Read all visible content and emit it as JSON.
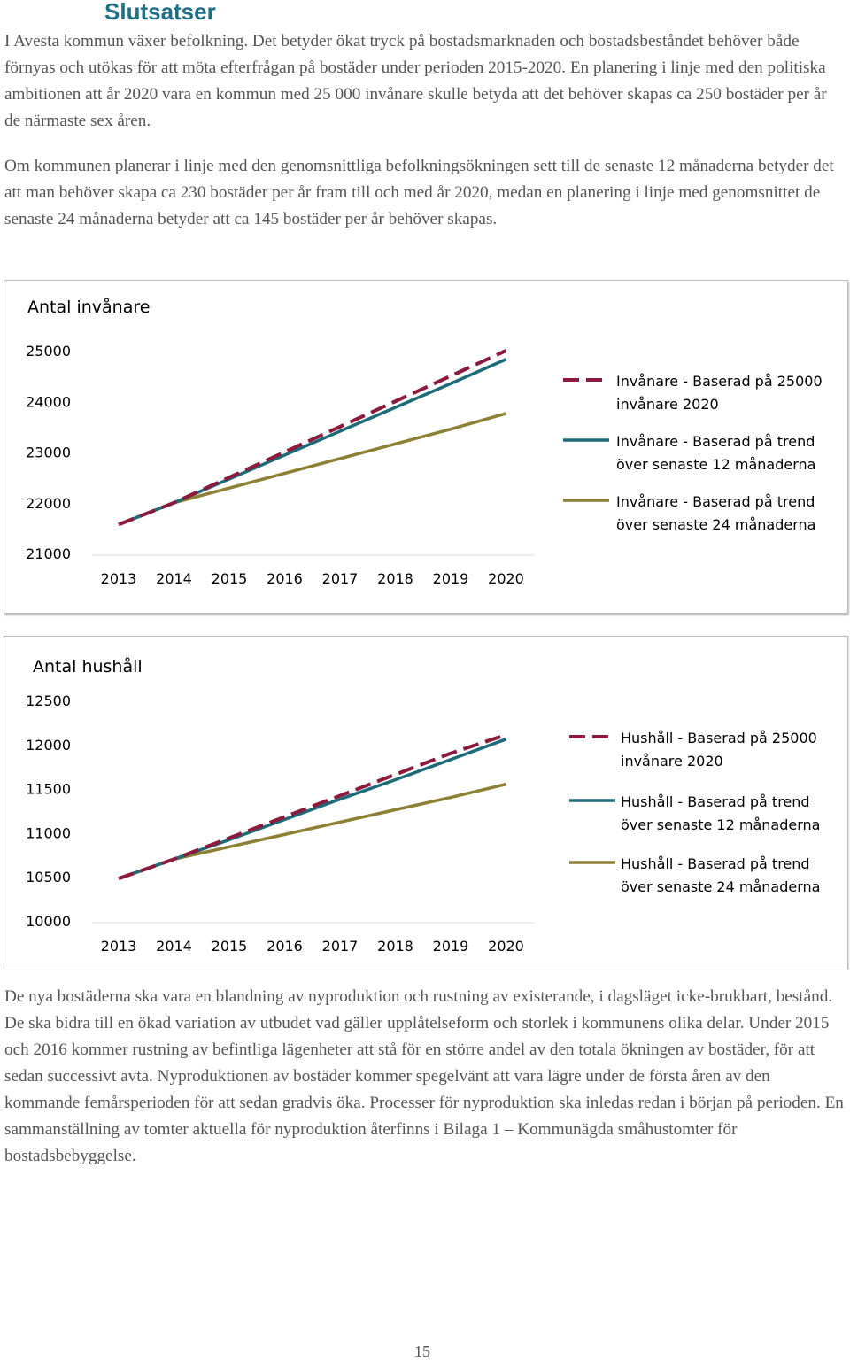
{
  "heading": "Slutsatser",
  "paragraphs": [
    "I Avesta kommun växer befolkning. Det betyder ökat tryck på bostadsmarknaden och bostadsbeståndet behöver både förnyas och utökas för att möta efterfrågan på bostäder under perioden 2015-2020. En planering i linje med den politiska ambitionen att år 2020 vara en kommun med 25 000 invånare skulle betyda att det behöver skapas ca 250 bostäder per år de närmaste sex åren.",
    "Om kommunen planerar i linje med den genomsnittliga befolkningsökningen sett till de senaste 12 månaderna betyder det att man behöver skapa ca 230 bostäder per år fram till och med år 2020, medan en planering i linje med genomsnittet de senaste 24 månaderna betyder att ca 145 bostäder per år behöver skapas.",
    "De nya bostäderna ska vara en blandning av nyproduktion och rustning av existerande, i dagsläget icke-brukbart, bestånd. De ska bidra till en ökad variation av utbudet vad gäller upplåtelseform och storlek i kommunens olika delar. Under 2015 och 2016 kommer rustning av befintliga lägenheter att stå för en större andel av den totala ökningen av bostäder, för att sedan successivt avta. Nyproduktionen av bostäder kommer spegelvänt att vara lägre under de första åren av den kommande femårsperioden för att sedan gradvis öka. Processer för nyproduktion ska inledas redan i början på perioden. En sammanställning av tomter aktuella för nyproduktion återfinns i Bilaga 1 – Kommunägda småhustomter för bostadsbebyggelse."
  ],
  "page_number": "15",
  "chart_data": [
    {
      "type": "line",
      "title": "Antal invånare",
      "xlabel": "",
      "ylabel": "",
      "categories": [
        "2013",
        "2014",
        "2015",
        "2016",
        "2017",
        "2018",
        "2019",
        "2020"
      ],
      "ylim": [
        21000,
        25000
      ],
      "yticks": [
        "21000",
        "22000",
        "23000",
        "24000",
        "25000"
      ],
      "grid": false,
      "legend_position": "right",
      "series": [
        {
          "name": "Invånare - Baserad på 25000 invånare 2020",
          "legend_lines": [
            "Invånare - Baserad på 25000",
            "invånare 2020"
          ],
          "color": "#8b1a3c",
          "style": "dashed",
          "values": [
            21570,
            22000,
            22500,
            23000,
            23500,
            24000,
            24500,
            25000
          ]
        },
        {
          "name": "Invånare - Baserad på trend över senaste 12 månaderna",
          "legend_lines": [
            "Invånare - Baserad på trend",
            "över senaste 12 månaderna"
          ],
          "color": "#1d6b78",
          "style": "solid",
          "values": [
            21570,
            22000,
            22470,
            22940,
            23410,
            23880,
            24350,
            24830
          ]
        },
        {
          "name": "Invånare - Baserad på trend över senaste 24 månaderna",
          "legend_lines": [
            "Invånare - Baserad på trend",
            "över senaste 24 månaderna"
          ],
          "color": "#8c8034",
          "style": "solid",
          "values": [
            21570,
            22000,
            22290,
            22580,
            22870,
            23160,
            23450,
            23760
          ]
        }
      ]
    },
    {
      "type": "line",
      "title": "Antal hushåll",
      "xlabel": "",
      "ylabel": "",
      "categories": [
        "2013",
        "2014",
        "2015",
        "2016",
        "2017",
        "2018",
        "2019",
        "2020"
      ],
      "ylim": [
        10000,
        12500
      ],
      "yticks": [
        "10000",
        "10500",
        "11000",
        "11500",
        "12000",
        "12500"
      ],
      "grid": false,
      "legend_position": "right",
      "series": [
        {
          "name": "Hushåll - Baserad på 25000 invånare 2020",
          "legend_lines": [
            "Hushåll - Baserad på 25000",
            "invånare 2020"
          ],
          "color": "#8b1a3c",
          "style": "dashed",
          "values": [
            10480,
            10700,
            10940,
            11180,
            11420,
            11660,
            11900,
            12110
          ]
        },
        {
          "name": "Hushåll - Baserad på trend över senaste 12 månaderna",
          "legend_lines": [
            "Hushåll - Baserad på trend",
            "över senaste 12 månaderna"
          ],
          "color": "#1d6b78",
          "style": "solid",
          "values": [
            10480,
            10700,
            10920,
            11150,
            11380,
            11600,
            11830,
            12060
          ]
        },
        {
          "name": "Hushåll - Baserad på trend över senaste 24 månaderna",
          "legend_lines": [
            "Hushåll - Baserad på trend",
            "över senaste 24 månaderna"
          ],
          "color": "#8c8034",
          "style": "solid",
          "values": [
            10480,
            10700,
            10840,
            10980,
            11120,
            11260,
            11400,
            11550
          ]
        }
      ]
    }
  ]
}
